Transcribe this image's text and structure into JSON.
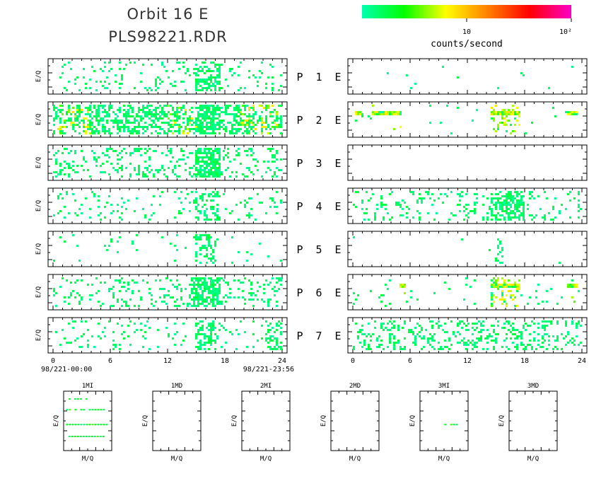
{
  "title": {
    "line1": "Orbit  16  E",
    "line2": "PLS98221.RDR"
  },
  "colorbar": {
    "label": "counts/second",
    "ticks": [
      {
        "value": 10,
        "text": "10"
      },
      {
        "value": 100,
        "text": "10²"
      }
    ],
    "range": [
      1,
      100
    ],
    "scale": "log",
    "colors": [
      "#00ffb0",
      "#00ff00",
      "#ffff00",
      "#ff8000",
      "#ff0000",
      "#ff00c8"
    ]
  },
  "ylabel": "E/Q",
  "panel_labels": [
    {
      "p": "P",
      "n": "1",
      "e": "E"
    },
    {
      "p": "P",
      "n": "2",
      "e": "E"
    },
    {
      "p": "P",
      "n": "3",
      "e": "E"
    },
    {
      "p": "P",
      "n": "4",
      "e": "E"
    },
    {
      "p": "P",
      "n": "5",
      "e": "E"
    },
    {
      "p": "P",
      "n": "6",
      "e": "E"
    },
    {
      "p": "P",
      "n": "7",
      "e": "E"
    }
  ],
  "time_axis": {
    "ticks": [
      "0",
      "6",
      "12",
      "18",
      "24"
    ],
    "start_label": "98/221-00:00",
    "end_label": "98/221-23:56",
    "range": [
      0,
      24
    ]
  },
  "chart_data": {
    "type": "heatmap",
    "x_range_hours": [
      0,
      24
    ],
    "left_panels": [
      {
        "panel": "P 1",
        "density": 0.1,
        "burst_hours": [
          [
            15.0,
            17.5
          ]
        ],
        "high_hours": []
      },
      {
        "panel": "P 2",
        "density": 0.45,
        "burst_hours": [
          [
            15.0,
            17.5
          ]
        ],
        "high_hours": [
          [
            0.5,
            4.0
          ],
          [
            12.0,
            15.0
          ],
          [
            19.5,
            23.5
          ]
        ]
      },
      {
        "panel": "P 3",
        "density": 0.18,
        "burst_hours": [
          [
            15.0,
            17.5
          ]
        ],
        "high_hours": []
      },
      {
        "panel": "P 4",
        "density": 0.07,
        "burst_hours": [
          [
            15.0,
            17.5
          ]
        ],
        "high_hours": []
      },
      {
        "panel": "P 5",
        "density": 0.03,
        "burst_hours": [
          [
            15.0,
            17.0
          ]
        ],
        "high_hours": []
      },
      {
        "panel": "P 6",
        "density": 0.16,
        "burst_hours": [
          [
            14.5,
            17.5
          ]
        ],
        "high_hours": [
          [
            9.5,
            9.8
          ]
        ]
      },
      {
        "panel": "P 7",
        "density": 0.08,
        "burst_hours": [
          [
            15.0,
            17.0
          ],
          [
            22.5,
            24.0
          ]
        ],
        "high_hours": []
      }
    ],
    "right_panels": [
      {
        "panel": "P 1 E",
        "density": 0.005,
        "burst_hours": [],
        "high_hours": []
      },
      {
        "panel": "P 2 E",
        "density": 0.02,
        "burst_hours": [
          [
            14.5,
            17.5
          ]
        ],
        "high_hours": [
          [
            0.2,
            0.8
          ],
          [
            2.0,
            5.0
          ],
          [
            14.5,
            17.5
          ],
          [
            22.5,
            23.5
          ]
        ]
      },
      {
        "panel": "P 3 E",
        "density": 0.0,
        "burst_hours": [],
        "high_hours": []
      },
      {
        "panel": "P 4 E",
        "density": 0.12,
        "burst_hours": [
          [
            14.5,
            18.0
          ]
        ],
        "high_hours": []
      },
      {
        "panel": "P 5 E",
        "density": 0.004,
        "burst_hours": [
          [
            15.0,
            15.8
          ]
        ],
        "high_hours": []
      },
      {
        "panel": "P 6 E",
        "density": 0.03,
        "burst_hours": [
          [
            14.5,
            17.5
          ]
        ],
        "high_hours": [
          [
            5.0,
            5.5
          ],
          [
            14.5,
            17.5
          ],
          [
            22.5,
            23.5
          ]
        ]
      },
      {
        "panel": "P 7 E",
        "density": 0.22,
        "burst_hours": [],
        "high_hours": []
      }
    ]
  },
  "mass_panels": [
    {
      "label": "1MI",
      "xlabel": "M/Q",
      "ylabel": "E/Q"
    },
    {
      "label": "1MD",
      "xlabel": "M/Q",
      "ylabel": "E/Q"
    },
    {
      "label": "2MI",
      "xlabel": "M/Q",
      "ylabel": "E/Q"
    },
    {
      "label": "2MD",
      "xlabel": "M/Q",
      "ylabel": "E/Q"
    },
    {
      "label": "3MI",
      "xlabel": "M/Q",
      "ylabel": "E/Q"
    },
    {
      "label": "3MD",
      "xlabel": "M/Q",
      "ylabel": "E/Q"
    }
  ]
}
